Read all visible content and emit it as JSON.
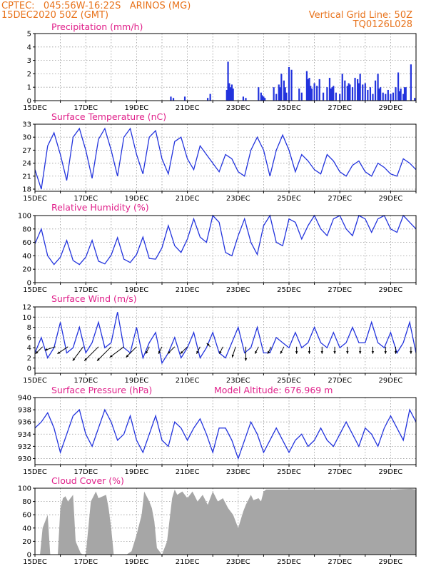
{
  "header": {
    "line1_left": "CPTEC:   045:56W-16:22S   ARINOS (MG)",
    "line2_left": "15DEC2020 50Z (GMT)",
    "line1_right": "Vertical Grid Line: 50Z",
    "line2_right": "TQ0126L028"
  },
  "colors": {
    "header": "#e8731c",
    "title": "#e0208a",
    "series": "#2233dd",
    "cloud": "#a6a6a6",
    "grid": "#999999"
  },
  "chart_data": [
    {
      "id": "precip",
      "type": "bar",
      "title": "Precipitation (mm/h)",
      "xlim": [
        0,
        15
      ],
      "ylim": [
        0,
        5
      ],
      "yticks": [
        0,
        1,
        2,
        3,
        4,
        5
      ],
      "xticks": [
        "15DEC",
        "17DEC",
        "19DEC",
        "21DEC",
        "23DEC",
        "25DEC",
        "27DEC",
        "29DEC"
      ],
      "x": [
        5.35,
        5.45,
        5.9,
        6.8,
        6.9,
        7.55,
        7.6,
        7.65,
        7.7,
        7.75,
        7.8,
        8.2,
        8.3,
        8.8,
        8.9,
        8.95,
        9.0,
        9.05,
        9.4,
        9.5,
        9.6,
        9.65,
        9.7,
        9.8,
        9.85,
        9.9,
        10.0,
        10.1,
        10.4,
        10.5,
        10.7,
        10.75,
        10.8,
        10.85,
        10.9,
        11.0,
        11.1,
        11.2,
        11.35,
        11.5,
        11.6,
        11.65,
        11.7,
        11.75,
        11.85,
        12.0,
        12.1,
        12.2,
        12.3,
        12.35,
        12.4,
        12.5,
        12.6,
        12.7,
        12.75,
        12.8,
        12.9,
        13.0,
        13.1,
        13.2,
        13.3,
        13.4,
        13.5,
        13.55,
        13.6,
        13.7,
        13.8,
        13.9,
        14.0,
        14.1,
        14.2,
        14.3,
        14.35,
        14.4,
        14.5,
        14.55,
        14.6,
        14.8,
        14.95
      ],
      "values": [
        0.3,
        0.2,
        0.3,
        0.2,
        0.5,
        0.8,
        2.9,
        1.3,
        1.0,
        1.2,
        0.9,
        0.3,
        0.2,
        1.0,
        0.6,
        0.4,
        0.3,
        0.2,
        1.0,
        0.5,
        1.2,
        1.0,
        2.0,
        1.5,
        1.0,
        0.6,
        2.5,
        2.3,
        0.9,
        0.6,
        2.2,
        1.6,
        1.7,
        1.1,
        0.9,
        1.3,
        1.1,
        1.6,
        0.6,
        1.0,
        1.7,
        0.9,
        1.0,
        1.1,
        0.6,
        0.5,
        2.0,
        1.5,
        1.1,
        1.3,
        1.2,
        1.0,
        1.7,
        1.6,
        1.3,
        2.0,
        1.2,
        1.3,
        0.8,
        1.0,
        0.5,
        1.5,
        2.0,
        0.9,
        1.0,
        0.6,
        0.5,
        0.8,
        0.5,
        0.6,
        1.0,
        2.1,
        0.7,
        0.9,
        0.5,
        1.0,
        1.0,
        2.7,
        0.2
      ]
    },
    {
      "id": "temp",
      "type": "line",
      "title": "Surface Temperature (nC)",
      "xlim": [
        0,
        15
      ],
      "ylim": [
        17.5,
        33
      ],
      "yticks": [
        18,
        21,
        24,
        27,
        30,
        33
      ],
      "xticks": [
        "15DEC",
        "17DEC",
        "19DEC",
        "21DEC",
        "23DEC",
        "25DEC",
        "27DEC",
        "29DEC"
      ],
      "x": [
        0,
        0.25,
        0.5,
        0.75,
        1.0,
        1.25,
        1.5,
        1.75,
        2.0,
        2.25,
        2.5,
        2.75,
        3.0,
        3.25,
        3.5,
        3.75,
        4.0,
        4.25,
        4.5,
        4.75,
        5.0,
        5.25,
        5.5,
        5.75,
        6.0,
        6.25,
        6.5,
        6.75,
        7.0,
        7.25,
        7.5,
        7.75,
        8.0,
        8.25,
        8.5,
        8.75,
        9.0,
        9.25,
        9.5,
        9.75,
        10.0,
        10.25,
        10.5,
        10.75,
        11.0,
        11.25,
        11.5,
        11.75,
        12.0,
        12.25,
        12.5,
        12.75,
        13.0,
        13.25,
        13.5,
        13.75,
        14.0,
        14.25,
        14.5,
        14.75,
        15.0
      ],
      "values": [
        22.5,
        18,
        28,
        31,
        26,
        20,
        30,
        32,
        27,
        20.5,
        29.5,
        32,
        27,
        21,
        30,
        32,
        26,
        21.5,
        30,
        31.5,
        25,
        21.5,
        29,
        30,
        25,
        22.5,
        28,
        26,
        24,
        22,
        26,
        25,
        22,
        21,
        27,
        30,
        27,
        21,
        27,
        30.5,
        27,
        22,
        26,
        24.5,
        22.5,
        21.5,
        26,
        24.5,
        22,
        21,
        23.5,
        24.5,
        22,
        21,
        24,
        23,
        21.5,
        21,
        25,
        24,
        22.5
      ]
    },
    {
      "id": "rh",
      "type": "line",
      "title": "Relative Humidity (%)",
      "xlim": [
        0,
        15
      ],
      "ylim": [
        0,
        100
      ],
      "yticks": [
        0,
        20,
        40,
        60,
        80,
        100
      ],
      "xticks": [
        "15DEC",
        "17DEC",
        "19DEC",
        "21DEC",
        "23DEC",
        "25DEC",
        "27DEC",
        "29DEC"
      ],
      "x": [
        0,
        0.25,
        0.5,
        0.75,
        1.0,
        1.25,
        1.5,
        1.75,
        2.0,
        2.25,
        2.5,
        2.75,
        3.0,
        3.25,
        3.5,
        3.75,
        4.0,
        4.25,
        4.5,
        4.75,
        5.0,
        5.25,
        5.5,
        5.75,
        6.0,
        6.25,
        6.5,
        6.75,
        7.0,
        7.25,
        7.5,
        7.75,
        8.0,
        8.25,
        8.5,
        8.75,
        9.0,
        9.25,
        9.5,
        9.75,
        10.0,
        10.25,
        10.5,
        10.75,
        11.0,
        11.25,
        11.5,
        11.75,
        12.0,
        12.25,
        12.5,
        12.75,
        13.0,
        13.25,
        13.5,
        13.75,
        14.0,
        14.25,
        14.5,
        14.75,
        15.0
      ],
      "values": [
        58,
        80,
        40,
        27,
        38,
        63,
        33,
        27,
        38,
        63,
        32,
        28,
        41,
        67,
        35,
        30,
        42,
        68,
        36,
        35,
        52,
        85,
        55,
        45,
        65,
        95,
        68,
        60,
        100,
        90,
        45,
        40,
        70,
        95,
        60,
        42,
        85,
        100,
        60,
        55,
        95,
        90,
        65,
        85,
        100,
        80,
        70,
        95,
        100,
        80,
        70,
        100,
        95,
        75,
        95,
        100,
        80,
        75,
        100,
        90,
        80
      ]
    },
    {
      "id": "wind",
      "type": "line",
      "title": "Surface Wind (m/s)",
      "xlim": [
        0,
        15
      ],
      "ylim": [
        -1,
        12
      ],
      "yticks": [
        0,
        2,
        4,
        6,
        8,
        10,
        12
      ],
      "xticks": [
        "15DEC",
        "17DEC",
        "19DEC",
        "21DEC",
        "23DEC",
        "25DEC",
        "27DEC",
        "29DEC"
      ],
      "x": [
        0,
        0.25,
        0.5,
        0.75,
        1.0,
        1.25,
        1.5,
        1.75,
        2.0,
        2.25,
        2.5,
        2.75,
        3.0,
        3.25,
        3.5,
        3.75,
        4.0,
        4.25,
        4.5,
        4.75,
        5.0,
        5.25,
        5.5,
        5.75,
        6.0,
        6.25,
        6.5,
        6.75,
        7.0,
        7.25,
        7.5,
        7.75,
        8.0,
        8.25,
        8.5,
        8.75,
        9.0,
        9.25,
        9.5,
        9.75,
        10.0,
        10.25,
        10.5,
        10.75,
        11.0,
        11.25,
        11.5,
        11.75,
        12.0,
        12.25,
        12.5,
        12.75,
        13.0,
        13.25,
        13.5,
        13.75,
        14.0,
        14.25,
        14.5,
        14.75,
        15.0
      ],
      "values": [
        3,
        6,
        2,
        4,
        9,
        3,
        4,
        8,
        3,
        5,
        9,
        4,
        5,
        11,
        4,
        3,
        8,
        2,
        5,
        7,
        1,
        3,
        6,
        2,
        4,
        7,
        2,
        4,
        7,
        3,
        2,
        5,
        8,
        3,
        4,
        8,
        3,
        3,
        6,
        5,
        4,
        7,
        4,
        5,
        8,
        5,
        4,
        7,
        4,
        5,
        8,
        5,
        5,
        9,
        5,
        4,
        7,
        3,
        5,
        9,
        3
      ],
      "barbs": {
        "x": [
          0.3,
          0.8,
          1.3,
          1.9,
          2.5,
          3.0,
          3.5,
          4.0,
          4.5,
          5.0,
          5.5,
          6.0,
          6.5,
          6.9,
          7.4,
          7.9,
          8.3,
          8.8,
          9.3,
          9.8,
          10.3,
          10.8,
          11.3,
          11.8,
          12.3,
          12.8,
          13.3,
          13.8,
          14.2,
          14.8
        ],
        "u": [
          -2,
          -3,
          -3,
          -3,
          -4,
          -4,
          -4,
          -3,
          -1,
          -1,
          -2,
          -2,
          -1,
          -1,
          -1,
          -1,
          0,
          -1,
          -1,
          -1,
          0,
          0,
          0,
          0,
          0,
          0,
          0,
          0,
          0,
          0
        ],
        "v": [
          -2,
          -1,
          -2,
          -4,
          -4,
          -4,
          -3,
          -3,
          -2,
          -2,
          -2,
          -2,
          -2,
          1,
          -2,
          -3,
          -4,
          -2,
          -2,
          -2,
          -2,
          -2,
          -2,
          -2,
          -2,
          -2,
          -2,
          -2,
          -2,
          -2
        ]
      }
    },
    {
      "id": "press",
      "type": "line",
      "title": "Surface Pressure (hPa)",
      "extra": "Model Altitude: 676.969 m",
      "xlim": [
        0,
        15
      ],
      "ylim": [
        929,
        940
      ],
      "yticks": [
        930,
        932,
        934,
        936,
        938,
        940
      ],
      "xticks": [
        "15DEC",
        "17DEC",
        "19DEC",
        "21DEC",
        "23DEC",
        "25DEC",
        "27DEC",
        "29DEC"
      ],
      "x": [
        0,
        0.25,
        0.5,
        0.75,
        1.0,
        1.25,
        1.5,
        1.75,
        2.0,
        2.25,
        2.5,
        2.75,
        3.0,
        3.25,
        3.5,
        3.75,
        4.0,
        4.25,
        4.5,
        4.75,
        5.0,
        5.25,
        5.5,
        5.75,
        6.0,
        6.25,
        6.5,
        6.75,
        7.0,
        7.25,
        7.5,
        7.75,
        8.0,
        8.25,
        8.5,
        8.75,
        9.0,
        9.25,
        9.5,
        9.75,
        10.0,
        10.25,
        10.5,
        10.75,
        11.0,
        11.25,
        11.5,
        11.75,
        12.0,
        12.25,
        12.5,
        12.75,
        13.0,
        13.25,
        13.5,
        13.75,
        14.0,
        14.25,
        14.5,
        14.75,
        15.0
      ],
      "values": [
        935,
        936,
        937.5,
        935,
        931,
        934,
        937,
        938,
        934,
        932,
        935,
        938,
        936,
        933,
        934,
        937,
        933,
        931,
        934,
        937,
        933,
        932,
        936,
        935,
        933,
        935,
        936.5,
        934,
        931,
        935,
        935,
        933,
        930,
        933,
        936,
        934,
        931,
        933,
        935,
        933,
        931,
        933,
        934,
        932,
        933,
        935,
        933,
        932,
        934,
        936,
        934,
        932,
        935,
        934,
        932,
        935,
        937,
        935,
        933,
        938,
        936
      ]
    },
    {
      "id": "cloud",
      "type": "area",
      "title": "Cloud Cover (%)",
      "xlim": [
        0,
        15
      ],
      "ylim": [
        0,
        100
      ],
      "yticks": [
        0,
        20,
        40,
        60,
        80,
        100
      ],
      "xticks": [
        "15DEC",
        "17DEC",
        "19DEC",
        "21DEC",
        "23DEC",
        "25DEC",
        "27DEC",
        "29DEC"
      ],
      "x": [
        0,
        0.2,
        0.3,
        0.5,
        0.6,
        0.8,
        0.9,
        1.0,
        1.1,
        1.2,
        1.3,
        1.5,
        1.6,
        1.8,
        1.9,
        2.0,
        2.2,
        2.4,
        2.5,
        2.8,
        2.9,
        3.0,
        3.1,
        3.3,
        3.4,
        3.6,
        3.8,
        4.0,
        4.2,
        4.3,
        4.5,
        4.6,
        4.7,
        4.8,
        5.0,
        5.2,
        5.4,
        5.5,
        5.6,
        5.8,
        6.0,
        6.2,
        6.4,
        6.6,
        6.8,
        7.0,
        7.2,
        7.4,
        7.6,
        7.8,
        8.0,
        8.2,
        8.3,
        8.5,
        8.6,
        8.8,
        8.9,
        9.0,
        9.1,
        9.5,
        10.0,
        11.0,
        12.0,
        13.0,
        14.0,
        14.8,
        15.0
      ],
      "values": [
        0,
        0,
        40,
        60,
        0,
        0,
        0,
        70,
        85,
        88,
        80,
        90,
        20,
        2,
        0,
        0,
        80,
        95,
        85,
        90,
        70,
        40,
        0,
        0,
        0,
        0,
        5,
        30,
        60,
        95,
        80,
        70,
        50,
        10,
        0,
        20,
        85,
        98,
        90,
        95,
        85,
        95,
        80,
        90,
        75,
        95,
        80,
        85,
        70,
        60,
        40,
        65,
        75,
        90,
        82,
        85,
        80,
        95,
        98,
        98,
        98,
        98,
        98,
        98,
        98,
        99,
        98
      ]
    }
  ]
}
